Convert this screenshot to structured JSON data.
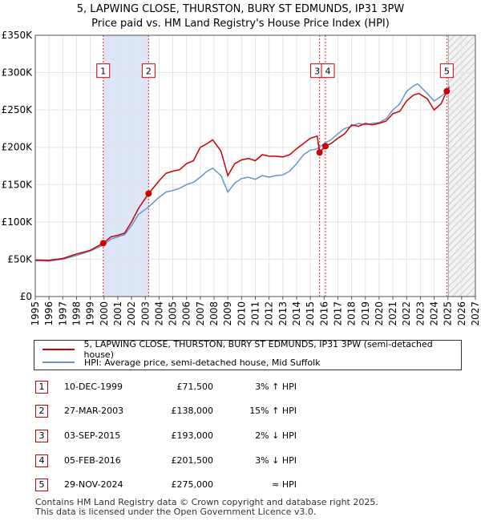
{
  "title": "5, LAPWING CLOSE, THURSTON, BURY ST EDMUNDS, IP31 3PW",
  "subtitle": "Price paid vs. HM Land Registry's House Price Index (HPI)",
  "colors": {
    "property": "#cc0000",
    "hpi": "#6495cd",
    "shade": "#dde6f7",
    "marker_line": "#cc0000"
  },
  "chart_data": {
    "type": "line",
    "xlim": [
      1995,
      2027
    ],
    "ylim": [
      0,
      350000
    ],
    "x_ticks": [
      "1995",
      "1996",
      "1997",
      "1998",
      "1999",
      "2000",
      "2001",
      "2002",
      "2003",
      "2004",
      "2005",
      "2006",
      "2007",
      "2008",
      "2009",
      "2010",
      "2011",
      "2012",
      "2013",
      "2014",
      "2015",
      "2016",
      "2017",
      "2018",
      "2019",
      "2020",
      "2021",
      "2022",
      "2023",
      "2024",
      "2025",
      "2026",
      "2027"
    ],
    "y_ticks": [
      {
        "value": 0,
        "label": "£0"
      },
      {
        "value": 50000,
        "label": "£50K"
      },
      {
        "value": 100000,
        "label": "£100K"
      },
      {
        "value": 150000,
        "label": "£150K"
      },
      {
        "value": 200000,
        "label": "£200K"
      },
      {
        "value": 250000,
        "label": "£250K"
      },
      {
        "value": 300000,
        "label": "£300K"
      },
      {
        "value": 350000,
        "label": "£350K"
      }
    ],
    "shaded_periods": [
      [
        1999.94,
        2003.24
      ]
    ],
    "forecast_start": 2024.92,
    "series": [
      {
        "name": "5, LAPWING CLOSE, THURSTON, BURY ST EDMUNDS, IP31 3PW (semi-detached house)",
        "points": [
          [
            1995,
            49000
          ],
          [
            1996,
            48500
          ],
          [
            1997,
            51000
          ],
          [
            1998,
            57000
          ],
          [
            1999,
            62000
          ],
          [
            1999.94,
            71500
          ],
          [
            2000.5,
            80000
          ],
          [
            2001,
            82000
          ],
          [
            2001.5,
            85000
          ],
          [
            2002,
            100000
          ],
          [
            2002.5,
            118000
          ],
          [
            2003.24,
            138000
          ],
          [
            2004,
            155000
          ],
          [
            2004.5,
            165000
          ],
          [
            2005,
            168000
          ],
          [
            2005.5,
            170000
          ],
          [
            2006,
            178000
          ],
          [
            2006.5,
            182000
          ],
          [
            2007,
            200000
          ],
          [
            2007.5,
            205000
          ],
          [
            2007.9,
            210000
          ],
          [
            2008.5,
            195000
          ],
          [
            2009,
            162000
          ],
          [
            2009.5,
            178000
          ],
          [
            2010,
            183000
          ],
          [
            2010.5,
            185000
          ],
          [
            2011,
            182000
          ],
          [
            2011.5,
            190000
          ],
          [
            2012,
            188000
          ],
          [
            2012.5,
            188000
          ],
          [
            2013,
            187000
          ],
          [
            2013.5,
            190000
          ],
          [
            2014,
            198000
          ],
          [
            2014.5,
            205000
          ],
          [
            2015,
            212000
          ],
          [
            2015.5,
            215000
          ],
          [
            2015.67,
            193000
          ],
          [
            2016.1,
            201500
          ],
          [
            2016.5,
            205000
          ],
          [
            2017,
            212000
          ],
          [
            2017.5,
            218000
          ],
          [
            2018,
            230000
          ],
          [
            2018.5,
            228000
          ],
          [
            2019,
            232000
          ],
          [
            2019.5,
            230000
          ],
          [
            2020,
            232000
          ],
          [
            2020.5,
            235000
          ],
          [
            2021,
            245000
          ],
          [
            2021.5,
            248000
          ],
          [
            2022,
            262000
          ],
          [
            2022.5,
            270000
          ],
          [
            2022.9,
            272000
          ],
          [
            2023.5,
            265000
          ],
          [
            2024,
            250000
          ],
          [
            2024.5,
            258000
          ],
          [
            2024.92,
            275000
          ],
          [
            2025.1,
            280000
          ]
        ]
      },
      {
        "name": "HPI: Average price, semi-detached house, Mid Suffolk",
        "points": [
          [
            1995,
            48000
          ],
          [
            1996,
            47500
          ],
          [
            1997,
            50000
          ],
          [
            1998,
            55000
          ],
          [
            1999,
            61000
          ],
          [
            1999.94,
            69000
          ],
          [
            2000.5,
            77000
          ],
          [
            2001,
            80000
          ],
          [
            2001.5,
            83000
          ],
          [
            2002,
            95000
          ],
          [
            2002.5,
            110000
          ],
          [
            2003.24,
            120000
          ],
          [
            2004,
            133000
          ],
          [
            2004.5,
            140000
          ],
          [
            2005,
            142000
          ],
          [
            2005.5,
            145000
          ],
          [
            2006,
            150000
          ],
          [
            2006.5,
            153000
          ],
          [
            2007,
            160000
          ],
          [
            2007.5,
            168000
          ],
          [
            2007.9,
            172000
          ],
          [
            2008.5,
            162000
          ],
          [
            2009,
            140000
          ],
          [
            2009.5,
            152000
          ],
          [
            2010,
            158000
          ],
          [
            2010.5,
            160000
          ],
          [
            2011,
            157000
          ],
          [
            2011.5,
            162000
          ],
          [
            2012,
            160000
          ],
          [
            2012.5,
            162000
          ],
          [
            2013,
            163000
          ],
          [
            2013.5,
            168000
          ],
          [
            2014,
            178000
          ],
          [
            2014.5,
            190000
          ],
          [
            2015,
            196000
          ],
          [
            2015.5,
            198000
          ],
          [
            2016,
            205000
          ],
          [
            2016.5,
            210000
          ],
          [
            2017,
            218000
          ],
          [
            2017.5,
            225000
          ],
          [
            2018,
            228000
          ],
          [
            2018.5,
            232000
          ],
          [
            2019,
            230000
          ],
          [
            2019.5,
            232000
          ],
          [
            2020,
            233000
          ],
          [
            2020.5,
            238000
          ],
          [
            2021,
            250000
          ],
          [
            2021.5,
            258000
          ],
          [
            2022,
            275000
          ],
          [
            2022.5,
            282000
          ],
          [
            2022.8,
            285000
          ],
          [
            2023.5,
            272000
          ],
          [
            2024,
            262000
          ],
          [
            2024.5,
            268000
          ],
          [
            2024.92,
            275000
          ],
          [
            2025.1,
            282000
          ]
        ]
      }
    ],
    "sales": [
      {
        "label": "1",
        "x": 1999.94,
        "y": 71500
      },
      {
        "label": "2",
        "x": 2003.24,
        "y": 138000
      },
      {
        "label": "3",
        "x": 2015.67,
        "y": 193000
      },
      {
        "label": "4",
        "x": 2016.1,
        "y": 201500
      },
      {
        "label": "5",
        "x": 2024.92,
        "y": 275000
      }
    ],
    "marker_box_value": 302000
  },
  "legend": {
    "property": "5, LAPWING CLOSE, THURSTON, BURY ST EDMUNDS, IP31 3PW (semi-detached house)",
    "hpi": "HPI: Average price, semi-detached house, Mid Suffolk"
  },
  "transactions": [
    {
      "num": "1",
      "date": "10-DEC-1999",
      "price": "£71,500",
      "hpi": "3% ↑ HPI"
    },
    {
      "num": "2",
      "date": "27-MAR-2003",
      "price": "£138,000",
      "hpi": "15% ↑ HPI"
    },
    {
      "num": "3",
      "date": "03-SEP-2015",
      "price": "£193,000",
      "hpi": "2% ↓ HPI"
    },
    {
      "num": "4",
      "date": "05-FEB-2016",
      "price": "£201,500",
      "hpi": "3% ↓ HPI"
    },
    {
      "num": "5",
      "date": "29-NOV-2024",
      "price": "£275,000",
      "hpi": "≈ HPI"
    }
  ],
  "footer": {
    "line1": "Contains HM Land Registry data © Crown copyright and database right 2025.",
    "line2": "This data is licensed under the Open Government Licence v3.0."
  }
}
